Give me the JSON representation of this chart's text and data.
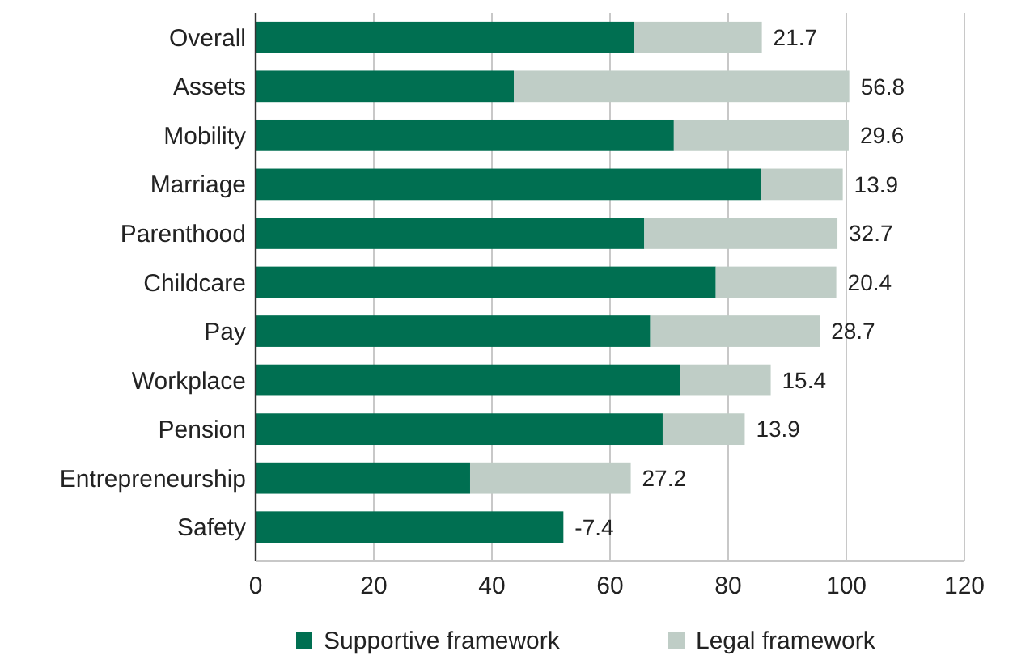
{
  "chart_data": {
    "type": "bar",
    "orientation": "horizontal",
    "stacked": true,
    "categories": [
      "Overall",
      "Assets",
      "Mobility",
      "Marriage",
      "Parenthood",
      "Childcare",
      "Pay",
      "Workplace",
      "Pension",
      "Entrepreneurship",
      "Safety"
    ],
    "series": [
      {
        "name": "Supportive framework",
        "color": "#006f51",
        "values": [
          64,
          43.7,
          70.8,
          85.5,
          65.8,
          77.9,
          66.8,
          71.8,
          68.9,
          36.3,
          52.1
        ]
      },
      {
        "name": "Legal framework",
        "color": "#bfcdc6",
        "values": [
          21.7,
          56.8,
          29.6,
          13.9,
          32.7,
          20.4,
          28.7,
          15.4,
          13.9,
          27.2,
          null
        ],
        "value_labels": [
          "21.7",
          "56.8",
          "29.6",
          "13.9",
          "32.7",
          "20.4",
          "28.7",
          "15.4",
          "13.9",
          "27.2",
          null
        ]
      }
    ],
    "annotations": [
      {
        "text": "-7.4",
        "x": 52.1,
        "y": "Safety"
      }
    ],
    "xlim": [
      0,
      120
    ],
    "xticks": [
      0,
      20,
      40,
      60,
      80,
      100,
      120
    ],
    "grid": "x",
    "legend": "bottom"
  }
}
